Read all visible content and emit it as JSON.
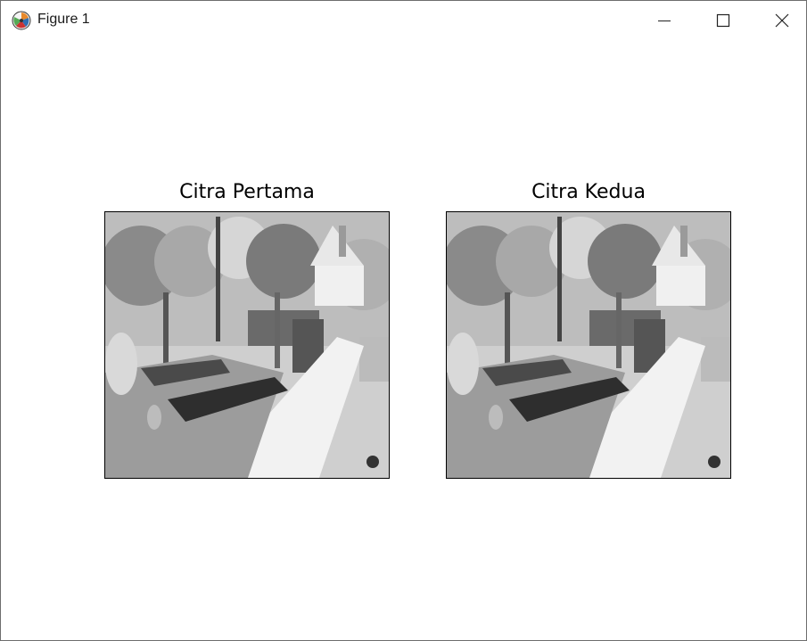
{
  "window": {
    "title": "Figure 1",
    "app_icon": "matplotlib-icon",
    "controls": {
      "minimize": "minimize-icon",
      "maximize": "maximize-icon",
      "close": "close-icon"
    }
  },
  "figure": {
    "subplots": [
      {
        "title": "Citra Pertama",
        "image": "grayscale garden scene"
      },
      {
        "title": "Citra Kedua",
        "image": "grayscale garden scene"
      }
    ]
  }
}
